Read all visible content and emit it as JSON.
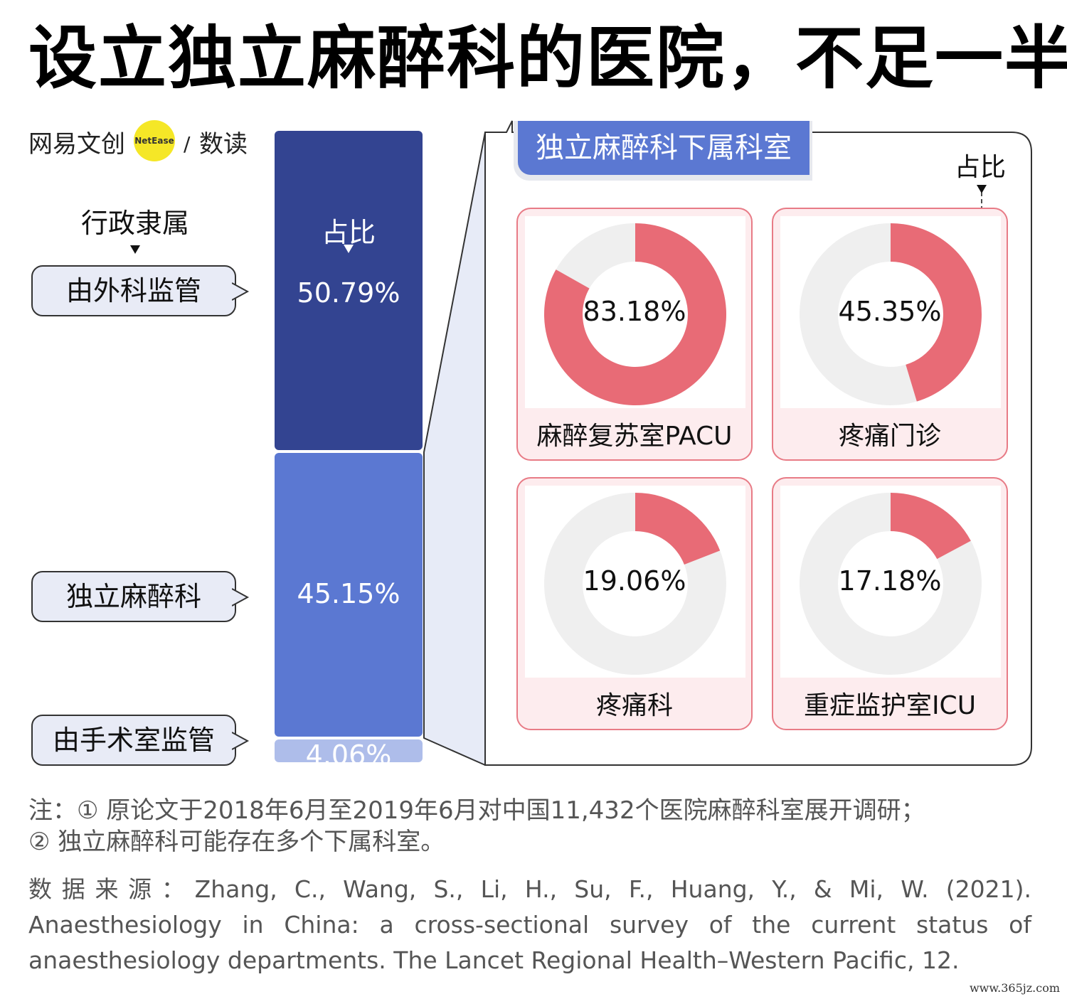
{
  "title": "设立独立麻醉科的医院，不足一半",
  "logo": {
    "brand": "网易文创",
    "badge": "NetEase",
    "column": "数读"
  },
  "left": {
    "head": "行政隶属",
    "items": [
      "由外科监管",
      "独立麻醉科",
      "由手术室监管"
    ]
  },
  "bar": {
    "head": "占比"
  },
  "panel": {
    "title": "独立麻醉科下属科室",
    "head": "占比"
  },
  "colors": {
    "dark_blue": "#334491",
    "mid_blue": "#5b78d2",
    "light_blue": "#aebdea",
    "red": "#e86b76",
    "grey": "#efefef",
    "panel_bg": "#e7ebf7"
  },
  "chart_data": [
    {
      "type": "bar",
      "stacked": true,
      "categories": [
        "由外科监管",
        "独立麻醉科",
        "由手术室监管"
      ],
      "values": [
        50.79,
        45.15,
        4.06
      ],
      "value_labels": [
        "50.79%",
        "45.15%",
        "4.06%"
      ],
      "unit": "%"
    },
    {
      "type": "pie",
      "donut": true,
      "categories": [
        "麻醉复苏室PACU",
        "疼痛门诊",
        "疼痛科",
        "重症监护室ICU"
      ],
      "values": [
        83.18,
        45.35,
        19.06,
        17.18
      ],
      "value_labels": [
        "83.18%",
        "45.35%",
        "19.06%",
        "17.18%"
      ],
      "unit": "%"
    }
  ],
  "note": {
    "line1": "注：① 原论文于2018年6月至2019年6月对中国11,432个医院麻醉科室展开调研；",
    "line2": "② 独立麻醉科可能存在多个下属科室。"
  },
  "source": "数据来源：Zhang, C., Wang, S., Li, H., Su, F., Huang, Y., & Mi, W. (2021). Anaesthesiology in China: a cross-sectional survey of the current status of anaesthesiology departments. The Lancet Regional Health–Western Pacific, 12.",
  "watermark": "www.365jz.com"
}
